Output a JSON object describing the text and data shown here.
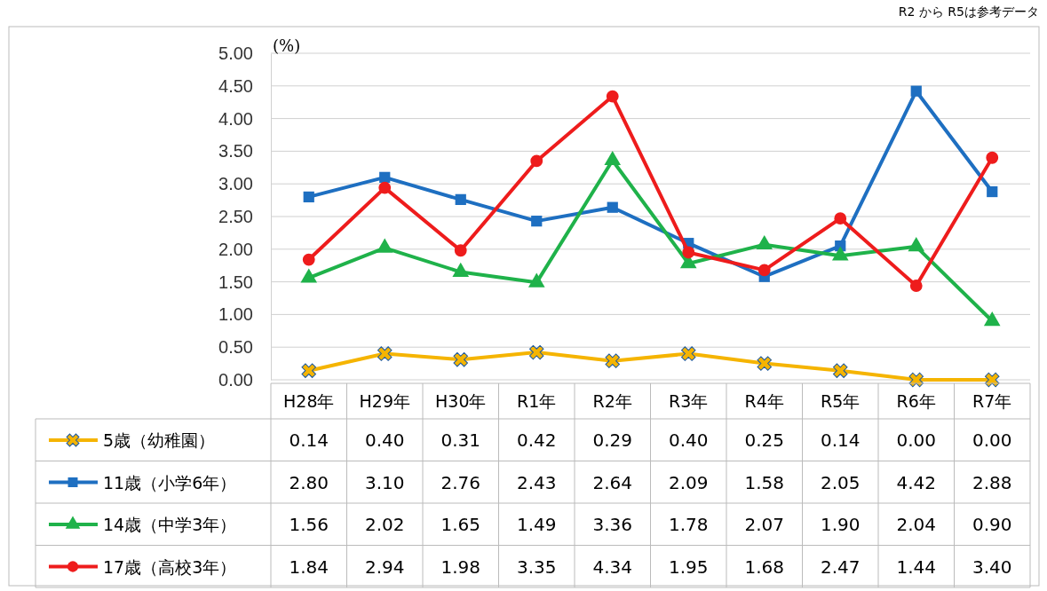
{
  "chart_data": {
    "type": "line",
    "ylabel": "(%)",
    "annotations": [
      "R2 から R5は参考データ"
    ],
    "categories": [
      "H28年",
      "H29年",
      "H30年",
      "R1年",
      "R2年",
      "R3年",
      "R4年",
      "R5年",
      "R6年",
      "R7年"
    ],
    "ylim": [
      0,
      5
    ],
    "yticks": [
      {
        "value": 0,
        "label": "0.00"
      },
      {
        "value": 0.5,
        "label": "0.50"
      },
      {
        "value": 1,
        "label": "1.00"
      },
      {
        "value": 1.5,
        "label": "1.50"
      },
      {
        "value": 2,
        "label": "2.00"
      },
      {
        "value": 2.5,
        "label": "2.50"
      },
      {
        "value": 3,
        "label": "3.00"
      },
      {
        "value": 3.5,
        "label": "3.50"
      },
      {
        "value": 4,
        "label": "4.00"
      },
      {
        "value": 4.5,
        "label": "4.50"
      },
      {
        "value": 5,
        "label": "5.00"
      }
    ],
    "grid": "y",
    "legend": "bottom",
    "line_style": "solid",
    "series": [
      {
        "name": "5歳（幼稚園）",
        "color": "#f5b400",
        "marker": "cross",
        "values": [
          0.14,
          0.4,
          0.31,
          0.42,
          0.29,
          0.4,
          0.25,
          0.14,
          0.0,
          0.0
        ],
        "value_labels": [
          "0.14",
          "0.40",
          "0.31",
          "0.42",
          "0.29",
          "0.40",
          "0.25",
          "0.14",
          "0.00",
          "0.00"
        ]
      },
      {
        "name": "11歳（小学6年）",
        "color": "#1e6fc1",
        "marker": "square",
        "values": [
          2.8,
          3.1,
          2.76,
          2.43,
          2.64,
          2.09,
          1.58,
          2.05,
          4.42,
          2.88
        ],
        "value_labels": [
          "2.80",
          "3.10",
          "2.76",
          "2.43",
          "2.64",
          "2.09",
          "1.58",
          "2.05",
          "4.42",
          "2.88"
        ]
      },
      {
        "name": "14歳（中学3年）",
        "color": "#1fb24a",
        "marker": "triangle",
        "values": [
          1.56,
          2.02,
          1.65,
          1.49,
          3.36,
          1.78,
          2.07,
          1.9,
          2.04,
          0.9
        ],
        "value_labels": [
          "1.56",
          "2.02",
          "1.65",
          "1.49",
          "3.36",
          "1.78",
          "2.07",
          "1.90",
          "2.04",
          "0.90"
        ]
      },
      {
        "name": "17歳（高校3年）",
        "color": "#ee1c1c",
        "marker": "circle",
        "values": [
          1.84,
          2.94,
          1.98,
          3.35,
          4.34,
          1.95,
          1.68,
          2.47,
          1.44,
          3.4
        ],
        "value_labels": [
          "1.84",
          "2.94",
          "1.98",
          "3.35",
          "4.34",
          "1.95",
          "1.68",
          "2.47",
          "1.44",
          "3.40"
        ]
      }
    ]
  }
}
